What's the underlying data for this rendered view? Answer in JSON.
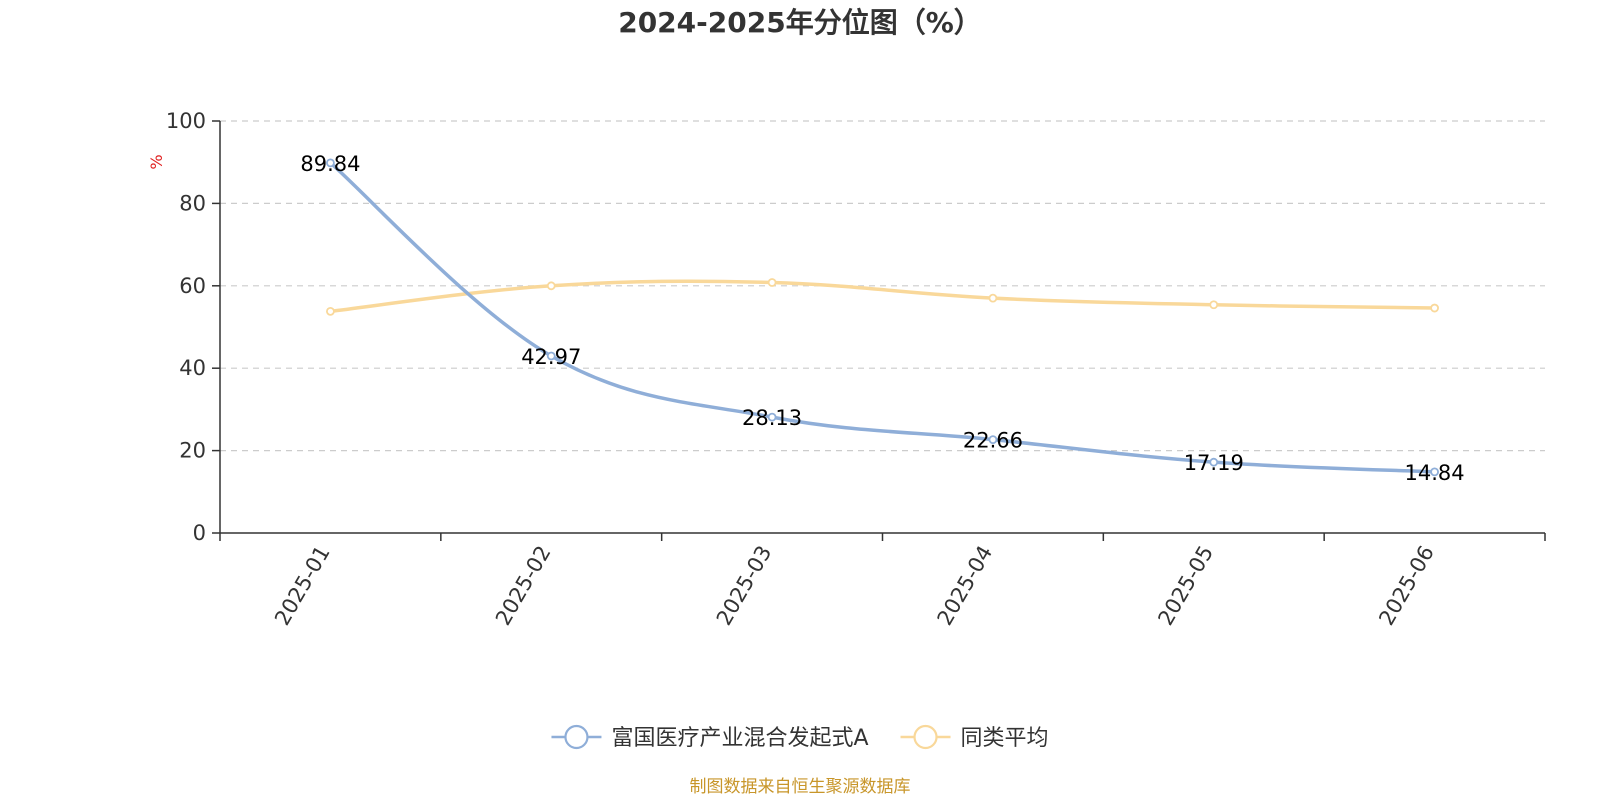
{
  "chart_data": {
    "type": "line",
    "title": "2024-2025年分位图（%）",
    "ylabel": "%",
    "xlabel": "",
    "categories": [
      "2025-01",
      "2025-02",
      "2025-03",
      "2025-04",
      "2025-05",
      "2025-06"
    ],
    "ylim": [
      0,
      100
    ],
    "yticks": [
      0,
      20,
      40,
      60,
      80,
      100
    ],
    "grid": true,
    "legend_position": "bottom",
    "series": [
      {
        "name": "富国医疗产业混合发起式A",
        "values": [
          89.84,
          42.97,
          28.13,
          22.66,
          17.19,
          14.84
        ],
        "labels": [
          "89.84",
          "42.97",
          "28.13",
          "22.66",
          "17.19",
          "14.84"
        ],
        "color": "#8faed8"
      },
      {
        "name": "同类平均",
        "values": [
          53.8,
          60.0,
          60.8,
          57.0,
          55.4,
          54.6
        ],
        "color": "#f9d89a"
      }
    ],
    "source": "制图数据来自恒生聚源数据库",
    "colors": {
      "axis": "#333333",
      "grid": "#cccccc",
      "unit": "#e02020",
      "source": "#c8962a"
    }
  }
}
